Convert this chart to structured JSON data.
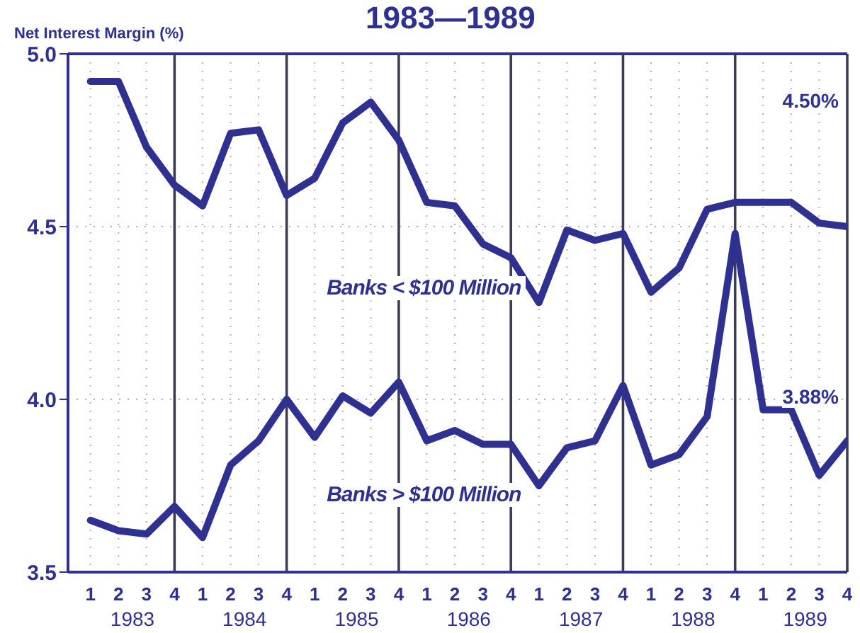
{
  "chart_data": {
    "type": "line",
    "title": "1983—1989",
    "ylabel": "Net Interest Margin (%)",
    "categories": [
      "1",
      "2",
      "3",
      "4",
      "1",
      "2",
      "3",
      "4",
      "1",
      "2",
      "3",
      "4",
      "1",
      "2",
      "3",
      "4",
      "1",
      "2",
      "3",
      "4",
      "1",
      "2",
      "3",
      "4",
      "1",
      "2",
      "3",
      "4"
    ],
    "series": [
      {
        "name": "Banks < $100 Million",
        "color": "#2e3190",
        "values": [
          4.92,
          4.92,
          4.73,
          4.62,
          4.56,
          4.77,
          4.78,
          4.59,
          4.64,
          4.8,
          4.86,
          4.75,
          4.57,
          4.56,
          4.45,
          4.41,
          4.28,
          4.49,
          4.46,
          4.48,
          4.31,
          4.38,
          4.55,
          4.57,
          4.57,
          4.57,
          4.51,
          4.5
        ]
      },
      {
        "name": "Banks > $100 Million",
        "color": "#2e3190",
        "values": [
          3.65,
          3.62,
          3.61,
          3.69,
          3.6,
          3.81,
          3.88,
          4.0,
          3.89,
          4.01,
          3.96,
          4.05,
          3.88,
          3.91,
          3.87,
          3.87,
          3.75,
          3.86,
          3.88,
          4.04,
          3.81,
          3.84,
          3.95,
          4.48,
          3.97,
          3.97,
          3.78,
          3.88
        ]
      }
    ],
    "ylim": [
      3.5,
      5.0
    ],
    "yticks": [
      3.5,
      {
        "value": 4,
        "label": "4.0"
      },
      4.5,
      {
        "value": 5,
        "label": "5.0"
      }
    ],
    "grid": true,
    "legend": false,
    "annotations": [
      "1983",
      "1984",
      "1985",
      "1986",
      "1987",
      "1988",
      "1989",
      "4.50%",
      "3.88%"
    ]
  }
}
